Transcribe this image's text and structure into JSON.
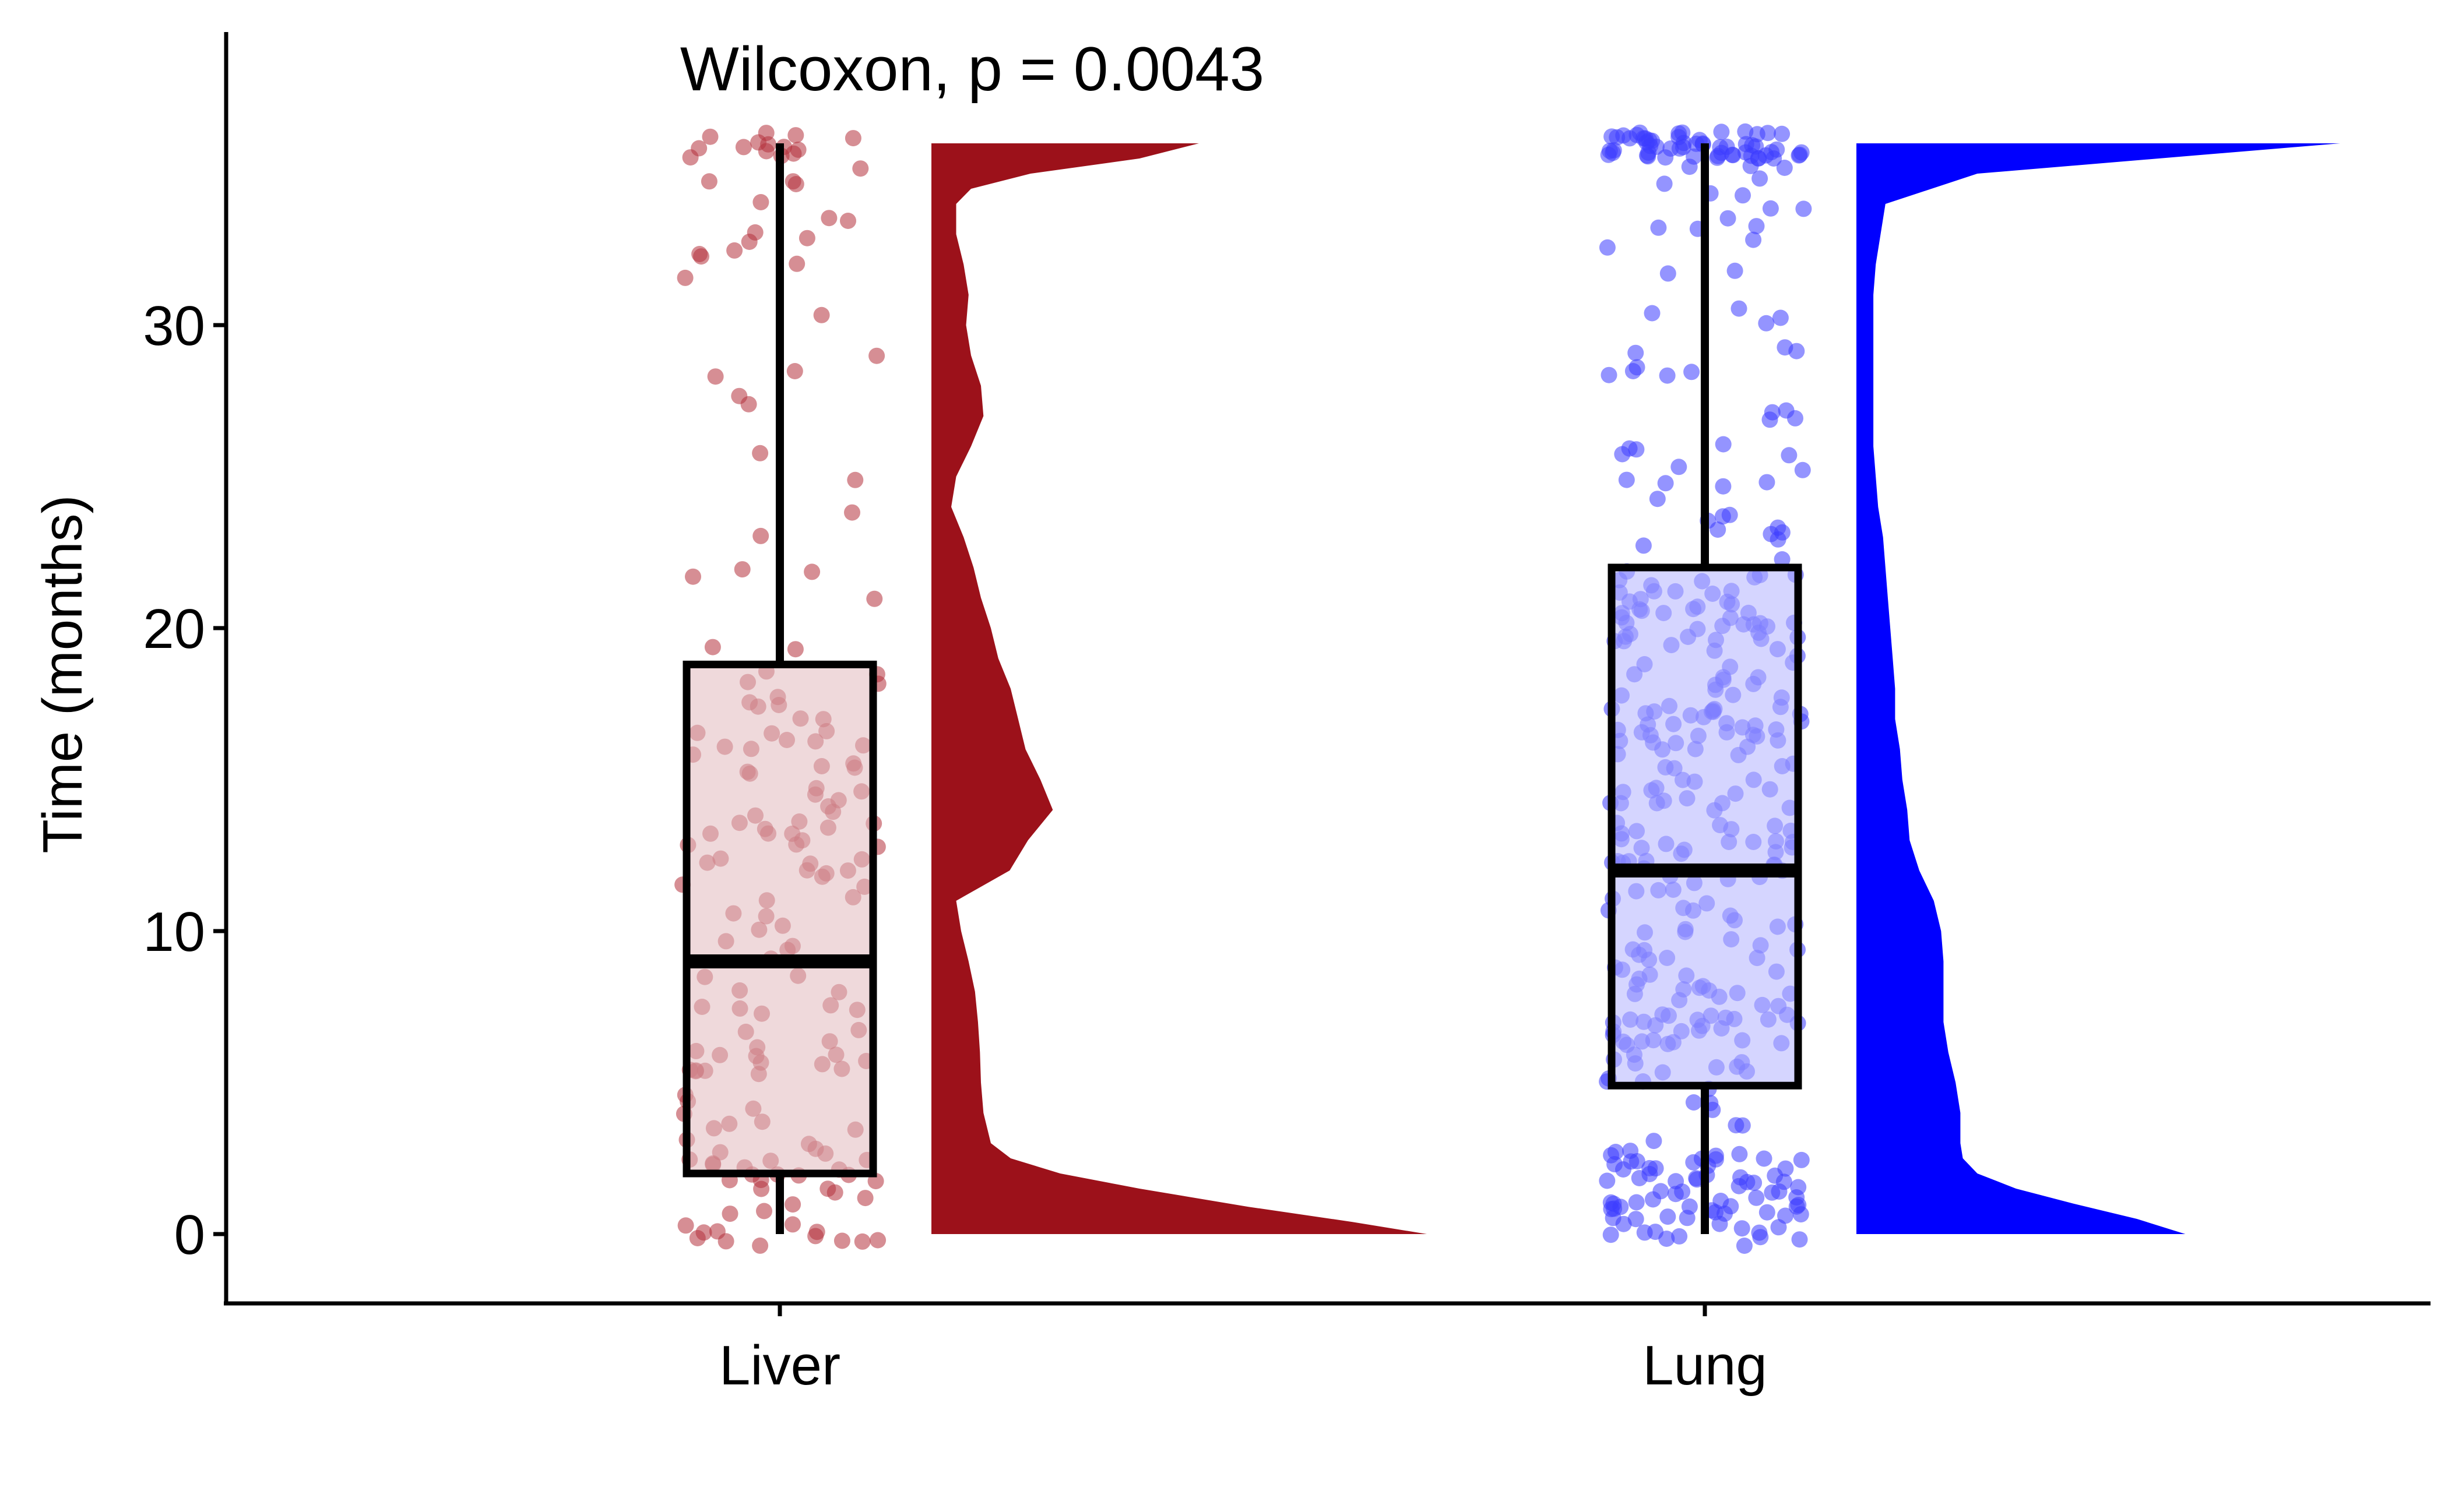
{
  "chart_data": {
    "type": "raincloud",
    "title": "",
    "xlabel": "",
    "ylabel": "Time (months)",
    "ylim": [
      -2.2,
      39.3
    ],
    "yticks": [
      0,
      10,
      20,
      30
    ],
    "categories": [
      "Liver",
      "Lung"
    ],
    "annotation": "Wilcoxon, p = 0.0043",
    "grid": false,
    "legend": "none",
    "colors": {
      "Liver": {
        "fill": "#9C111A",
        "point": "#B4323C",
        "box_fill": "#E2BABD"
      },
      "Lung": {
        "fill": "#0000FF",
        "point": "#3C3CFF",
        "box_fill": "#B3B3FF"
      }
    },
    "series": [
      {
        "name": "Liver",
        "box": {
          "min": 0,
          "q1": 2,
          "median": 9,
          "q3": 18.8,
          "max": 36
        },
        "density": [
          [
            0,
            1.0
          ],
          [
            0.4,
            0.85
          ],
          [
            0.9,
            0.64
          ],
          [
            1.5,
            0.42
          ],
          [
            2.0,
            0.26
          ],
          [
            2.5,
            0.16
          ],
          [
            3.0,
            0.12
          ],
          [
            4.0,
            0.105
          ],
          [
            5.0,
            0.1
          ],
          [
            6.0,
            0.098
          ],
          [
            7.0,
            0.094
          ],
          [
            8.0,
            0.088
          ],
          [
            9.0,
            0.075
          ],
          [
            10.0,
            0.06
          ],
          [
            11.0,
            0.05
          ],
          [
            12.0,
            0.158
          ],
          [
            13.0,
            0.195
          ],
          [
            14.0,
            0.245
          ],
          [
            15.0,
            0.22
          ],
          [
            16.0,
            0.19
          ],
          [
            17.0,
            0.175
          ],
          [
            18.0,
            0.16
          ],
          [
            19.0,
            0.135
          ],
          [
            20.0,
            0.12
          ],
          [
            21.0,
            0.1
          ],
          [
            22.0,
            0.085
          ],
          [
            23.0,
            0.065
          ],
          [
            24.0,
            0.04
          ],
          [
            25.0,
            0.05
          ],
          [
            26.0,
            0.08
          ],
          [
            27.0,
            0.105
          ],
          [
            28.0,
            0.1
          ],
          [
            29.0,
            0.08
          ],
          [
            30.0,
            0.07
          ],
          [
            31.0,
            0.075
          ],
          [
            32.0,
            0.065
          ],
          [
            33.0,
            0.05
          ],
          [
            34.0,
            0.05
          ],
          [
            34.5,
            0.08
          ],
          [
            35.0,
            0.2
          ],
          [
            35.5,
            0.42
          ],
          [
            36.0,
            0.54
          ]
        ]
      },
      {
        "name": "Lung",
        "box": {
          "min": 0,
          "q1": 4.9,
          "median": 12,
          "q3": 22,
          "max": 36
        },
        "density": [
          [
            0,
            0.68
          ],
          [
            0.5,
            0.58
          ],
          [
            1.0,
            0.45
          ],
          [
            1.5,
            0.33
          ],
          [
            2.0,
            0.25
          ],
          [
            2.5,
            0.22
          ],
          [
            3.0,
            0.215
          ],
          [
            4.0,
            0.215
          ],
          [
            5.0,
            0.205
          ],
          [
            6.0,
            0.19
          ],
          [
            7.0,
            0.18
          ],
          [
            8.0,
            0.18
          ],
          [
            9.0,
            0.18
          ],
          [
            10.0,
            0.175
          ],
          [
            11.0,
            0.16
          ],
          [
            12.0,
            0.13
          ],
          [
            13.0,
            0.11
          ],
          [
            14.0,
            0.105
          ],
          [
            15.0,
            0.095
          ],
          [
            16.0,
            0.09
          ],
          [
            17.0,
            0.08
          ],
          [
            18.0,
            0.08
          ],
          [
            19.0,
            0.075
          ],
          [
            20.0,
            0.07
          ],
          [
            21.0,
            0.065
          ],
          [
            22.0,
            0.06
          ],
          [
            23.0,
            0.055
          ],
          [
            24.0,
            0.045
          ],
          [
            25.0,
            0.04
          ],
          [
            26.0,
            0.035
          ],
          [
            27.0,
            0.035
          ],
          [
            28.0,
            0.035
          ],
          [
            29.0,
            0.035
          ],
          [
            30.0,
            0.035
          ],
          [
            31.0,
            0.035
          ],
          [
            32.0,
            0.04
          ],
          [
            33.0,
            0.05
          ],
          [
            34.0,
            0.06
          ],
          [
            35.0,
            0.25
          ],
          [
            35.6,
            0.7
          ],
          [
            36.0,
            1.0
          ]
        ]
      }
    ]
  }
}
